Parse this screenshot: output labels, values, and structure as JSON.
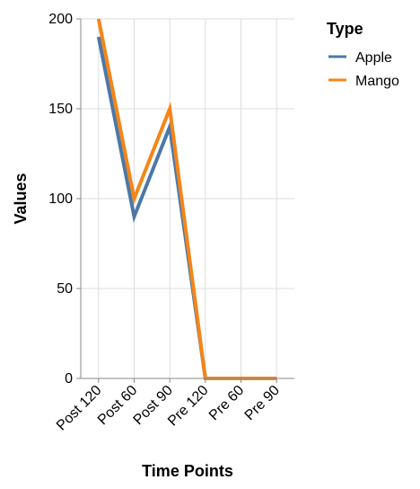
{
  "chart_data": {
    "type": "line",
    "xlabel": "Time Points",
    "ylabel": "Values",
    "categories": [
      "Post 120",
      "Post 60",
      "Post 90",
      "Pre 120",
      "Pre 60",
      "Pre 90"
    ],
    "ylim": [
      0,
      200
    ],
    "yticks": [
      0,
      50,
      100,
      150,
      200
    ],
    "grid": true,
    "legend": {
      "title": "Type",
      "placement": "top-right"
    },
    "series": [
      {
        "name": "Apple",
        "color": "#4c78a8",
        "values": [
          190,
          90,
          140,
          0,
          0,
          0
        ]
      },
      {
        "name": "Mango",
        "color": "#f58518",
        "values": [
          200,
          100,
          150,
          0,
          0,
          0
        ]
      }
    ]
  }
}
